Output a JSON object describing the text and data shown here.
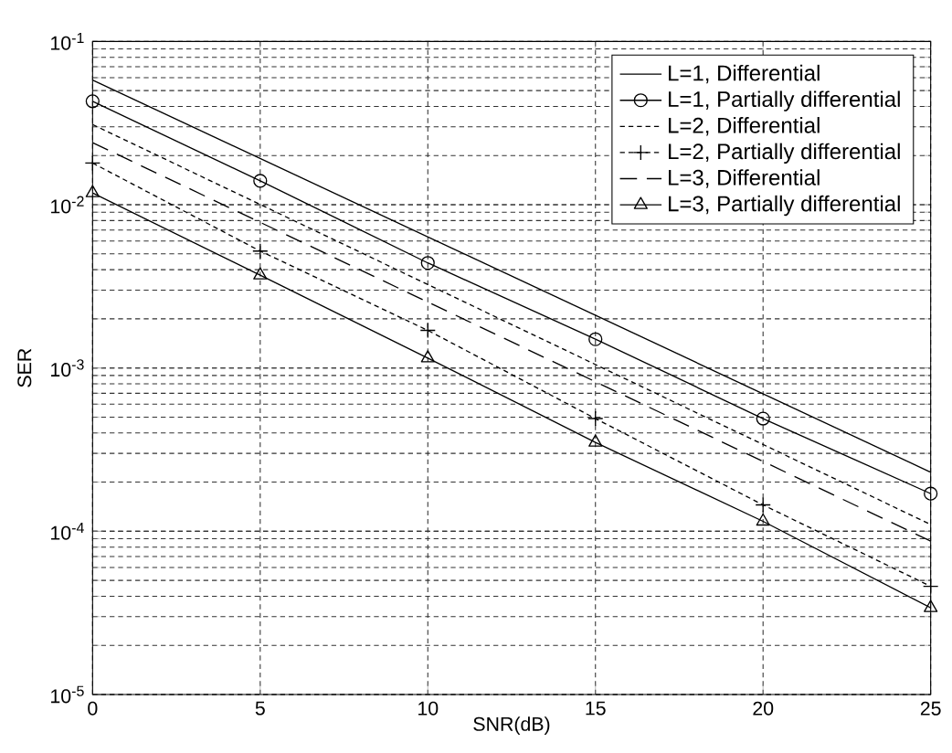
{
  "chart_data": {
    "type": "line",
    "xlabel": "SNR(dB)",
    "ylabel": "SER",
    "log": "y",
    "grid": true,
    "legend": "top right",
    "xlim": [
      0,
      25
    ],
    "xticks": [
      0,
      5,
      10,
      15,
      20,
      25
    ],
    "ylim": [
      1e-05,
      0.1
    ],
    "yticks": [
      {
        "value": 1e-05,
        "label": "10$^{-5}$"
      },
      {
        "value": 0.0001,
        "label": "10$^{-4}$"
      },
      {
        "value": 0.001,
        "label": "10$^{-3}$"
      },
      {
        "value": 0.01,
        "label": "10$^{-2}$"
      },
      {
        "value": 0.1,
        "label": "10$^{-1}$"
      }
    ],
    "series": [
      {
        "name": "L=1, Differential",
        "color": "#000000",
        "marker": "none",
        "line_style": "solid",
        "x": [
          0,
          25
        ],
        "values": [
          0.058,
          0.00023
        ]
      },
      {
        "name": "L=1, Partially differential",
        "color": "#000000",
        "marker": "circle",
        "line_style": "solid",
        "x": [
          0,
          5,
          10,
          15,
          20,
          25
        ],
        "values": [
          0.043,
          0.014,
          0.0044,
          0.0015,
          0.00049,
          0.00017
        ]
      },
      {
        "name": "L=2, Differential",
        "color": "#000000",
        "marker": "none",
        "line_style": "dotted",
        "x": [
          0,
          25
        ],
        "values": [
          0.031,
          0.00011
        ]
      },
      {
        "name": "L=2, Partially differential",
        "color": "#000000",
        "marker": "cross",
        "line_style": "dotted",
        "x": [
          0,
          5,
          10,
          15,
          20,
          25
        ],
        "values": [
          0.018,
          0.0052,
          0.0017,
          0.00049,
          0.000145,
          4.6e-05
        ]
      },
      {
        "name": "L=3, Differential",
        "color": "#000000",
        "marker": "none",
        "line_style": "dashed",
        "x": [
          0,
          25
        ],
        "values": [
          0.024,
          8.7e-05
        ]
      },
      {
        "name": "L=3, Partially differential",
        "color": "#000000",
        "marker": "triangle",
        "line_style": "solid",
        "x": [
          0,
          5,
          10,
          15,
          20,
          25
        ],
        "values": [
          0.0118,
          0.0037,
          0.00115,
          0.00035,
          0.000115,
          3.4e-05
        ]
      }
    ]
  }
}
